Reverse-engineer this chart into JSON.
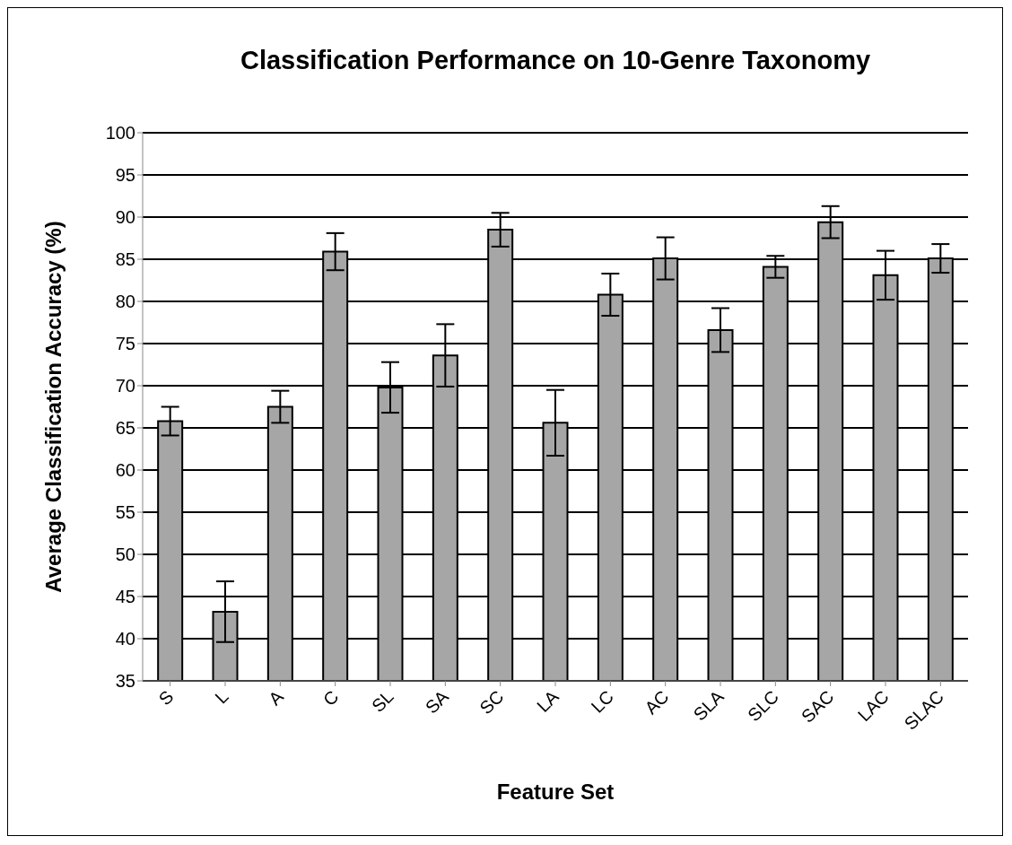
{
  "chart_data": {
    "type": "bar",
    "title": "Classification Performance on 10-Genre Taxonomy",
    "xlabel": "Feature Set",
    "ylabel": "Average Classification Accuracy (%)",
    "categories": [
      "S",
      "L",
      "A",
      "C",
      "SL",
      "SA",
      "SC",
      "LA",
      "LC",
      "AC",
      "SLA",
      "SLC",
      "SAC",
      "LAC",
      "SLAC"
    ],
    "values": [
      65.8,
      43.2,
      67.5,
      85.9,
      69.8,
      73.6,
      88.5,
      65.6,
      80.8,
      85.1,
      76.6,
      84.1,
      89.4,
      83.1,
      85.1
    ],
    "errors": [
      1.7,
      3.6,
      1.9,
      2.2,
      3.0,
      3.7,
      2.0,
      3.9,
      2.5,
      2.5,
      2.6,
      1.3,
      1.9,
      2.9,
      1.7
    ],
    "color": "#a6a6a6",
    "ylim": [
      35,
      100
    ],
    "yticks": [
      35,
      40,
      45,
      50,
      55,
      60,
      65,
      70,
      75,
      80,
      85,
      90,
      95,
      100
    ],
    "grid": "y"
  }
}
